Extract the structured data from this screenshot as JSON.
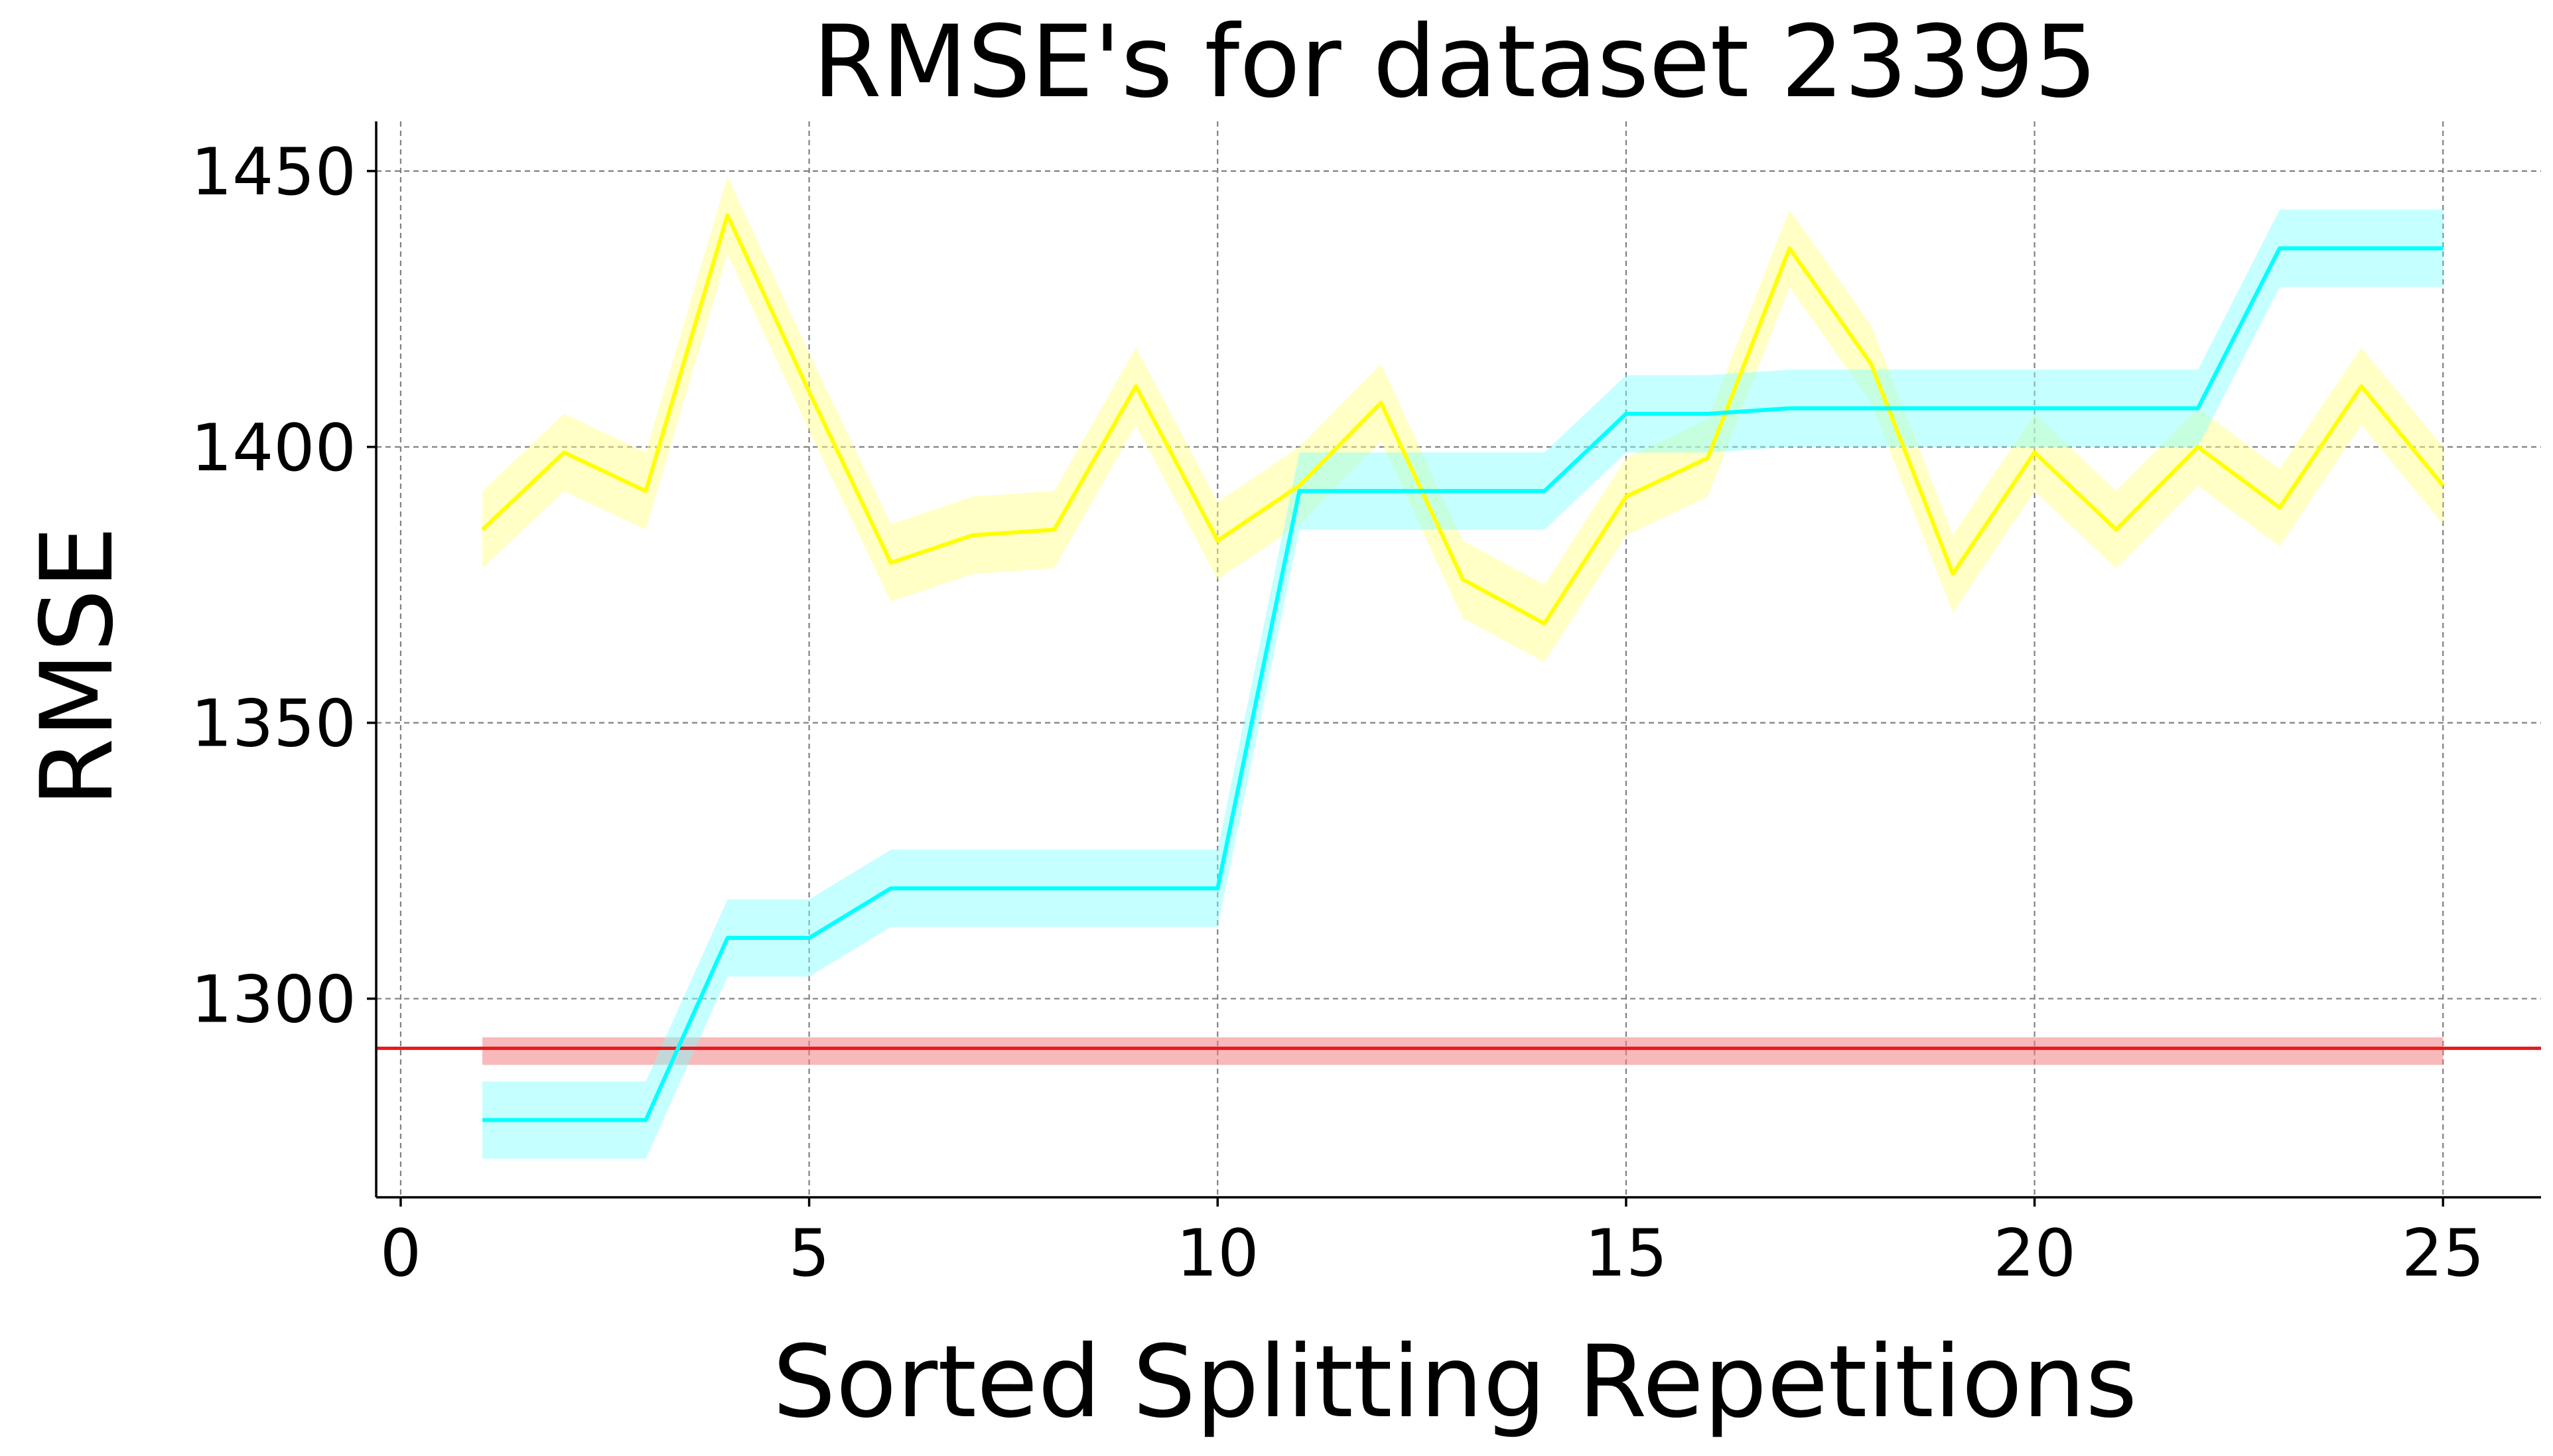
{
  "chart_data": {
    "type": "line",
    "title": "RMSE's for dataset 23395",
    "xlabel": "Sorted Splitting Repetitions",
    "ylabel": "RMSE",
    "xlim": [
      -0.3,
      26.2
    ],
    "ylim": [
      1264,
      1459
    ],
    "xticks": [
      0,
      5,
      10,
      15,
      20,
      25
    ],
    "yticks": [
      1300,
      1350,
      1400,
      1450
    ],
    "xtick_labels": [
      "0",
      "5",
      "10",
      "15",
      "20",
      "25"
    ],
    "ytick_labels": [
      "1300",
      "1350",
      "1400",
      "1450"
    ],
    "grid": true,
    "x": [
      1,
      2,
      3,
      4,
      5,
      6,
      7,
      8,
      9,
      10,
      11,
      12,
      13,
      14,
      15,
      16,
      17,
      18,
      19,
      20,
      21,
      22,
      23,
      24,
      25
    ],
    "series": [
      {
        "color": "#ffff00",
        "band_color": "#ffff80",
        "band": 7,
        "values": [
          1385,
          1399,
          1392,
          1442,
          1410,
          1379,
          1384,
          1385,
          1411,
          1383,
          1393,
          1408,
          1376,
          1368,
          1391,
          1398,
          1436,
          1415,
          1377,
          1399,
          1385,
          1400,
          1389,
          1411,
          1393
        ]
      },
      {
        "color": "#00ffff",
        "band_color": "#80ffff",
        "band": 7,
        "values": [
          1278,
          1278,
          1278,
          1311,
          1311,
          1320,
          1320,
          1320,
          1320,
          1320,
          1392,
          1392,
          1392,
          1392,
          1406,
          1406,
          1407,
          1407,
          1407,
          1407,
          1407,
          1407,
          1436,
          1436,
          1436
        ]
      }
    ],
    "baseline": {
      "value": 1291,
      "band": [
        1288,
        1293
      ],
      "band_x": [
        1,
        25
      ],
      "color": "#e41a1c",
      "band_color": "#f08080"
    }
  }
}
